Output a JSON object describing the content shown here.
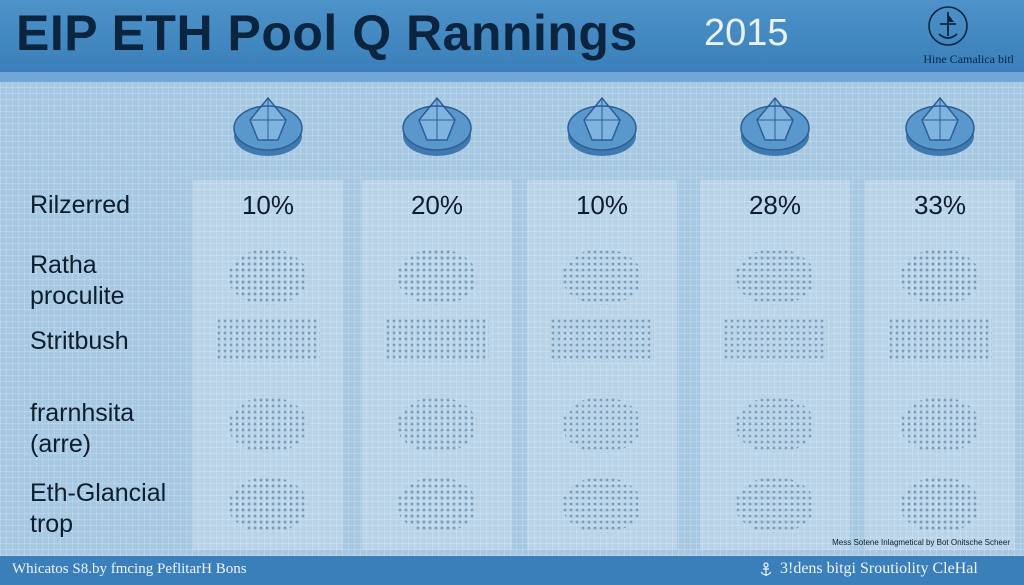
{
  "header": {
    "title": "EIP ETH Pool Q Rannings",
    "year": "2015",
    "brand": "Hine Camalica bitl",
    "logo_icon": "ship-emblem-icon"
  },
  "columns": [
    {
      "icon": "pool-coin-icon",
      "value": "10%"
    },
    {
      "icon": "pool-coin-icon",
      "value": "20%"
    },
    {
      "icon": "pool-coin-icon",
      "value": "10%"
    },
    {
      "icon": "pool-coin-icon",
      "value": "28%"
    },
    {
      "icon": "pool-coin-icon",
      "value": "33%"
    }
  ],
  "rows": [
    {
      "label": "Rilzerred"
    },
    {
      "label": "Ratha\nproculite"
    },
    {
      "label": "Stritbush"
    },
    {
      "label": "frarnhsita\n(arre)"
    },
    {
      "label": "Eth-Glancial\ntrop"
    }
  ],
  "credit": "Mess Sotene Inlagmetical by Bot Onitsche Scheer",
  "footer": {
    "left": "Whicatos S8.by fmcing PeflitarH Bons",
    "right": "3!dens bitgi Sroutiolity CleHal",
    "right_icon": "anchor-icon"
  },
  "colors": {
    "header": "#3a7fb9",
    "background": "#a9cbe3",
    "text": "#0d1d2e"
  }
}
